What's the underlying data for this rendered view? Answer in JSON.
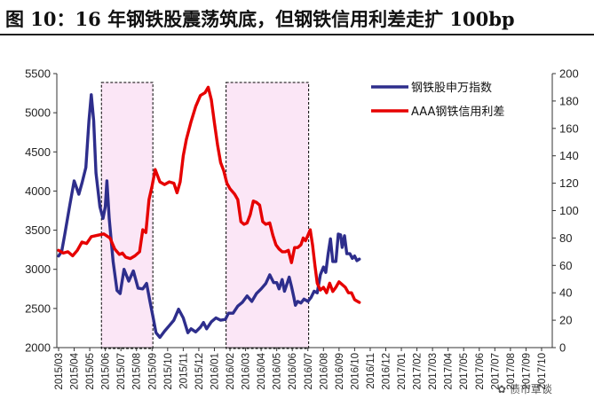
{
  "header": {
    "title": "图 10：16 年钢铁股震荡筑底，但钢铁信用利差走扩 100bp"
  },
  "watermark": "债市覃谈",
  "chart_data": {
    "type": "line",
    "categories": [
      "2015/03",
      "2015/04",
      "2015/05",
      "2015/06",
      "2015/07",
      "2015/08",
      "2015/09",
      "2015/10",
      "2015/11",
      "2015/12",
      "2016/01",
      "2016/02",
      "2016/03",
      "2016/04",
      "2016/05",
      "2016/06",
      "2016/07",
      "2016/08",
      "2016/09",
      "2016/10",
      "2016/11",
      "2016/12",
      "2017/01",
      "2017/02",
      "2017/03",
      "2017/04",
      "2017/05",
      "2017/06",
      "2017/07",
      "2017/08",
      "2017/09",
      "2017/10"
    ],
    "left_axis": {
      "min": 2000,
      "max": 5500,
      "ticks": [
        2000,
        2500,
        3000,
        3500,
        4000,
        4500,
        5000,
        5500
      ]
    },
    "right_axis": {
      "min": 0,
      "max": 200,
      "ticks": [
        0,
        20,
        40,
        60,
        80,
        100,
        120,
        140,
        160,
        180,
        200
      ]
    },
    "highlights": [
      {
        "from": "2015/06",
        "to": "2015/09"
      },
      {
        "from": "2016/02",
        "to": "2016/07"
      }
    ],
    "legend": {
      "position": "top-right"
    },
    "series": [
      {
        "name": "钢铁股申万指数",
        "axis": "left",
        "color": "#2e2e8c",
        "points": [
          [
            0.0,
            3170
          ],
          [
            0.2,
            3230
          ],
          [
            0.4,
            3450
          ],
          [
            0.7,
            3800
          ],
          [
            1.0,
            4130
          ],
          [
            1.3,
            3960
          ],
          [
            1.5,
            4100
          ],
          [
            1.75,
            4300
          ],
          [
            1.95,
            4900
          ],
          [
            2.1,
            5230
          ],
          [
            2.25,
            4900
          ],
          [
            2.4,
            4230
          ],
          [
            2.65,
            3800
          ],
          [
            2.85,
            3650
          ],
          [
            3.0,
            3800
          ],
          [
            3.1,
            4130
          ],
          [
            3.25,
            3650
          ],
          [
            3.5,
            3100
          ],
          [
            3.75,
            2730
          ],
          [
            3.95,
            2690
          ],
          [
            4.2,
            3000
          ],
          [
            4.5,
            2850
          ],
          [
            4.8,
            2980
          ],
          [
            5.1,
            2760
          ],
          [
            5.4,
            2750
          ],
          [
            5.65,
            2820
          ],
          [
            5.85,
            2600
          ],
          [
            6.05,
            2400
          ],
          [
            6.25,
            2190
          ],
          [
            6.5,
            2130
          ],
          [
            6.8,
            2210
          ],
          [
            7.1,
            2280
          ],
          [
            7.4,
            2350
          ],
          [
            7.7,
            2490
          ],
          [
            8.0,
            2380
          ],
          [
            8.3,
            2190
          ],
          [
            8.5,
            2240
          ],
          [
            8.8,
            2200
          ],
          [
            9.1,
            2260
          ],
          [
            9.3,
            2320
          ],
          [
            9.5,
            2240
          ],
          [
            9.8,
            2330
          ],
          [
            10.1,
            2380
          ],
          [
            10.4,
            2350
          ],
          [
            10.7,
            2360
          ],
          [
            10.9,
            2440
          ],
          [
            11.2,
            2440
          ],
          [
            11.5,
            2530
          ],
          [
            11.8,
            2580
          ],
          [
            12.1,
            2660
          ],
          [
            12.4,
            2590
          ],
          [
            12.7,
            2690
          ],
          [
            13.0,
            2750
          ],
          [
            13.3,
            2820
          ],
          [
            13.55,
            2930
          ],
          [
            13.8,
            2830
          ],
          [
            14.0,
            2830
          ],
          [
            14.15,
            2750
          ],
          [
            14.35,
            2870
          ],
          [
            14.5,
            2720
          ],
          [
            14.65,
            2810
          ],
          [
            14.8,
            2900
          ],
          [
            14.95,
            2780
          ],
          [
            15.1,
            2640
          ],
          [
            15.2,
            2540
          ],
          [
            15.35,
            2590
          ],
          [
            15.55,
            2570
          ],
          [
            15.75,
            2620
          ],
          [
            16.0,
            2590
          ],
          [
            16.2,
            2640
          ],
          [
            16.4,
            2720
          ],
          [
            16.6,
            2700
          ],
          [
            16.8,
            2930
          ],
          [
            17.0,
            3030
          ],
          [
            17.15,
            2960
          ],
          [
            17.3,
            3200
          ],
          [
            17.45,
            3390
          ],
          [
            17.6,
            3100
          ],
          [
            17.8,
            3100
          ],
          [
            17.95,
            3450
          ],
          [
            18.1,
            3440
          ],
          [
            18.2,
            3280
          ],
          [
            18.35,
            3430
          ],
          [
            18.5,
            3200
          ],
          [
            18.7,
            3200
          ],
          [
            18.85,
            3140
          ],
          [
            19.0,
            3170
          ],
          [
            19.15,
            3110
          ],
          [
            19.3,
            3130
          ]
        ]
      },
      {
        "name": "AAA钢铁信用利差",
        "axis": "right",
        "color": "#e60000",
        "points": [
          [
            0.0,
            71
          ],
          [
            0.3,
            69
          ],
          [
            0.6,
            70
          ],
          [
            0.9,
            67
          ],
          [
            1.2,
            71
          ],
          [
            1.5,
            77
          ],
          [
            1.8,
            76
          ],
          [
            2.1,
            81
          ],
          [
            2.5,
            82
          ],
          [
            2.9,
            83
          ],
          [
            3.3,
            80
          ],
          [
            3.6,
            72
          ],
          [
            3.9,
            68
          ],
          [
            4.1,
            69
          ],
          [
            4.3,
            66
          ],
          [
            4.6,
            65
          ],
          [
            4.9,
            67
          ],
          [
            5.2,
            70
          ],
          [
            5.4,
            86
          ],
          [
            5.6,
            84
          ],
          [
            5.8,
            108
          ],
          [
            6.0,
            118
          ],
          [
            6.2,
            130
          ],
          [
            6.5,
            121
          ],
          [
            6.8,
            119
          ],
          [
            7.1,
            121
          ],
          [
            7.4,
            120
          ],
          [
            7.6,
            113
          ],
          [
            7.8,
            121
          ],
          [
            8.0,
            140
          ],
          [
            8.2,
            152
          ],
          [
            8.5,
            165
          ],
          [
            8.8,
            176
          ],
          [
            9.1,
            184
          ],
          [
            9.4,
            186
          ],
          [
            9.6,
            190
          ],
          [
            9.8,
            181
          ],
          [
            10.0,
            164
          ],
          [
            10.2,
            148
          ],
          [
            10.4,
            135
          ],
          [
            10.6,
            129
          ],
          [
            10.8,
            120
          ],
          [
            11.0,
            116
          ],
          [
            11.3,
            112
          ],
          [
            11.5,
            108
          ],
          [
            11.7,
            92
          ],
          [
            11.9,
            90
          ],
          [
            12.1,
            91
          ],
          [
            12.3,
            97
          ],
          [
            12.5,
            107
          ],
          [
            12.7,
            106
          ],
          [
            12.9,
            104
          ],
          [
            13.1,
            92
          ],
          [
            13.3,
            90
          ],
          [
            13.55,
            91
          ],
          [
            13.75,
            82
          ],
          [
            13.95,
            75
          ],
          [
            14.15,
            72
          ],
          [
            14.35,
            70
          ],
          [
            14.55,
            70
          ],
          [
            14.75,
            71
          ],
          [
            14.95,
            62
          ],
          [
            15.15,
            73
          ],
          [
            15.35,
            73
          ],
          [
            15.55,
            75
          ],
          [
            15.7,
            80
          ],
          [
            15.85,
            78
          ],
          [
            16.0,
            82
          ],
          [
            16.15,
            86
          ],
          [
            16.3,
            75
          ],
          [
            16.45,
            60
          ],
          [
            16.6,
            47
          ],
          [
            16.8,
            42
          ],
          [
            17.0,
            44
          ],
          [
            17.2,
            40
          ],
          [
            17.4,
            47
          ],
          [
            17.6,
            41
          ],
          [
            17.8,
            44
          ],
          [
            18.0,
            48
          ],
          [
            18.2,
            46
          ],
          [
            18.4,
            44
          ],
          [
            18.6,
            40
          ],
          [
            18.8,
            40
          ],
          [
            19.0,
            35
          ],
          [
            19.15,
            34
          ],
          [
            19.3,
            33
          ]
        ]
      }
    ]
  }
}
